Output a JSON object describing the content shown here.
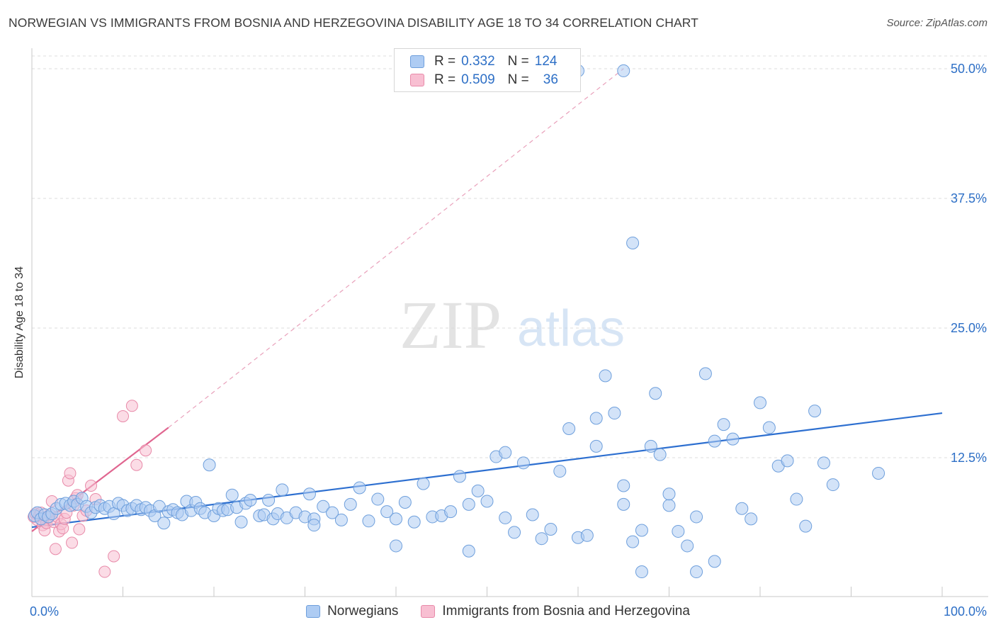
{
  "title": "NORWEGIAN VS IMMIGRANTS FROM BOSNIA AND HERZEGOVINA DISABILITY AGE 18 TO 34 CORRELATION CHART",
  "source": "Source: ZipAtlas.com",
  "watermark": {
    "zip": "ZIP",
    "atlas": "atlas"
  },
  "colors": {
    "blue_fill": "#aeccf3",
    "blue_stroke": "#6e9fdc",
    "blue_line": "#2d6fd0",
    "pink_fill": "#f8bfd2",
    "pink_stroke": "#e88aa9",
    "pink_line": "#e06690",
    "value_text": "#2d6fc6",
    "grid": "#dcdcdc"
  },
  "legend": {
    "rows": [
      {
        "r_label": "R =",
        "r_value": "0.332",
        "n_label": "N =",
        "n_value": "124"
      },
      {
        "r_label": "R =",
        "r_value": "0.509",
        "n_label": "N =",
        "n_value": "36"
      }
    ]
  },
  "bottom_legend": [
    "Norwegians",
    "Immigrants from Bosnia and Herzegovina"
  ],
  "chart_data": {
    "type": "scatter",
    "title": "NORWEGIAN VS IMMIGRANTS FROM BOSNIA AND HERZEGOVINA DISABILITY AGE 18 TO 34 CORRELATION CHART",
    "xlabel": "",
    "ylabel": "Disability Age 18 to 34",
    "xlim": [
      0,
      100
    ],
    "ylim": [
      0,
      52
    ],
    "x_tick_labels": [
      "0.0%",
      "100.0%"
    ],
    "y_ticks": [
      12.5,
      25.0,
      37.5,
      50.0
    ],
    "y_tick_labels": [
      "12.5%",
      "25.0%",
      "37.5%",
      "50.0%"
    ],
    "grid": true,
    "legend_placement": "top-center",
    "series": [
      {
        "name": "Norwegians",
        "r": 0.332,
        "n": 124,
        "trend": {
          "x": [
            0,
            100
          ],
          "y": [
            5.8,
            16.8
          ]
        },
        "points": [
          [
            0.3,
            6.9
          ],
          [
            0.6,
            7.2
          ],
          [
            1.0,
            6.6
          ],
          [
            1.4,
            7.0
          ],
          [
            1.8,
            6.8
          ],
          [
            2.2,
            7.1
          ],
          [
            2.7,
            7.6
          ],
          [
            3.2,
            8.0
          ],
          [
            3.7,
            8.1
          ],
          [
            4.2,
            7.9
          ],
          [
            4.6,
            8.3
          ],
          [
            5.0,
            8.0
          ],
          [
            5.5,
            8.6
          ],
          [
            6.0,
            7.8
          ],
          [
            6.5,
            7.2
          ],
          [
            7.0,
            7.7
          ],
          [
            7.5,
            7.9
          ],
          [
            8.0,
            7.6
          ],
          [
            8.5,
            7.8
          ],
          [
            9.0,
            7.1
          ],
          [
            9.5,
            8.1
          ],
          [
            10.0,
            7.9
          ],
          [
            10.5,
            7.4
          ],
          [
            11.0,
            7.6
          ],
          [
            11.5,
            7.9
          ],
          [
            12.0,
            7.5
          ],
          [
            12.5,
            7.7
          ],
          [
            13.0,
            7.4
          ],
          [
            13.5,
            6.9
          ],
          [
            14.0,
            7.8
          ],
          [
            14.5,
            6.2
          ],
          [
            15.0,
            7.3
          ],
          [
            15.5,
            7.5
          ],
          [
            16.0,
            7.2
          ],
          [
            16.5,
            7.0
          ],
          [
            17.0,
            8.3
          ],
          [
            17.5,
            7.4
          ],
          [
            18.0,
            8.2
          ],
          [
            18.5,
            7.6
          ],
          [
            19.0,
            7.2
          ],
          [
            19.5,
            11.8
          ],
          [
            20.0,
            6.9
          ],
          [
            20.5,
            7.6
          ],
          [
            21.0,
            7.4
          ],
          [
            21.5,
            7.5
          ],
          [
            22.0,
            8.9
          ],
          [
            22.5,
            7.7
          ],
          [
            23.0,
            6.3
          ],
          [
            23.5,
            8.1
          ],
          [
            24.0,
            8.4
          ],
          [
            25.0,
            6.9
          ],
          [
            25.5,
            7.0
          ],
          [
            26.0,
            8.4
          ],
          [
            26.5,
            6.6
          ],
          [
            27.0,
            7.1
          ],
          [
            27.5,
            9.4
          ],
          [
            28.0,
            6.7
          ],
          [
            29.0,
            7.2
          ],
          [
            30.0,
            6.8
          ],
          [
            30.5,
            9.0
          ],
          [
            31.0,
            6.6
          ],
          [
            32.0,
            7.8
          ],
          [
            33.0,
            7.2
          ],
          [
            34.0,
            6.5
          ],
          [
            35.0,
            8.0
          ],
          [
            36.0,
            9.6
          ],
          [
            37.0,
            6.4
          ],
          [
            38.0,
            8.5
          ],
          [
            39.0,
            7.3
          ],
          [
            40.0,
            6.6
          ],
          [
            41.0,
            8.2
          ],
          [
            42.0,
            6.3
          ],
          [
            43.0,
            10.0
          ],
          [
            44.0,
            6.8
          ],
          [
            45.0,
            6.9
          ],
          [
            46.0,
            7.3
          ],
          [
            47.0,
            10.7
          ],
          [
            48.0,
            8.0
          ],
          [
            49.0,
            9.3
          ],
          [
            50.0,
            8.3
          ],
          [
            51.0,
            12.6
          ],
          [
            52.0,
            6.7
          ],
          [
            53.0,
            5.3
          ],
          [
            54.0,
            12.0
          ],
          [
            55.0,
            7.0
          ],
          [
            56.0,
            4.7
          ],
          [
            57.0,
            5.6
          ],
          [
            58.0,
            11.2
          ],
          [
            59.0,
            15.3
          ],
          [
            60.0,
            4.8
          ],
          [
            61.0,
            5.0
          ],
          [
            62.0,
            13.6
          ],
          [
            63.0,
            20.4
          ],
          [
            64.0,
            16.8
          ],
          [
            65.0,
            9.8
          ],
          [
            66.0,
            4.4
          ],
          [
            67.0,
            5.5
          ],
          [
            68.0,
            13.6
          ],
          [
            68.5,
            18.7
          ],
          [
            69.0,
            12.8
          ],
          [
            70.0,
            7.9
          ],
          [
            71.0,
            5.4
          ],
          [
            72.0,
            4.0
          ],
          [
            73.0,
            6.8
          ],
          [
            74.0,
            20.6
          ],
          [
            75.0,
            14.1
          ],
          [
            76.0,
            15.7
          ],
          [
            77.0,
            14.3
          ],
          [
            78.0,
            7.6
          ],
          [
            79.0,
            6.6
          ],
          [
            80.0,
            17.8
          ],
          [
            81.0,
            15.4
          ],
          [
            82.0,
            11.7
          ],
          [
            83.0,
            12.2
          ],
          [
            84.0,
            8.5
          ],
          [
            85.0,
            5.9
          ],
          [
            86.0,
            17.0
          ],
          [
            87.0,
            12.0
          ],
          [
            88.0,
            9.9
          ],
          [
            60.0,
            49.8
          ],
          [
            62.0,
            16.3
          ],
          [
            65.0,
            49.8
          ],
          [
            66.0,
            33.2
          ],
          [
            67.0,
            1.5
          ],
          [
            73.0,
            1.5
          ],
          [
            75.0,
            2.5
          ],
          [
            93.0,
            11.0
          ],
          [
            40.0,
            4.0
          ],
          [
            31.0,
            6.0
          ],
          [
            52.0,
            13.0
          ],
          [
            48.0,
            3.5
          ],
          [
            65.0,
            8.0
          ],
          [
            70.0,
            9.0
          ]
        ]
      },
      {
        "name": "Immigrants from Bosnia and Herzegovina",
        "r": 0.509,
        "n": 36,
        "trend": {
          "x": [
            0,
            15
          ],
          "y": [
            5.4,
            15.4
          ]
        },
        "trend_extended": {
          "x": [
            15,
            65
          ],
          "y": [
            15.4,
            50.0
          ]
        },
        "points": [
          [
            0.2,
            6.8
          ],
          [
            0.4,
            7.1
          ],
          [
            0.6,
            6.5
          ],
          [
            0.8,
            6.9
          ],
          [
            1.0,
            7.2
          ],
          [
            1.2,
            6.0
          ],
          [
            1.4,
            5.5
          ],
          [
            1.6,
            6.2
          ],
          [
            1.8,
            6.7
          ],
          [
            2.0,
            7.0
          ],
          [
            2.2,
            8.3
          ],
          [
            2.4,
            6.3
          ],
          [
            2.6,
            3.7
          ],
          [
            2.8,
            6.8
          ],
          [
            3.0,
            5.4
          ],
          [
            3.2,
            6.1
          ],
          [
            3.4,
            5.7
          ],
          [
            3.6,
            6.6
          ],
          [
            3.8,
            7.2
          ],
          [
            4.0,
            10.3
          ],
          [
            4.2,
            11.0
          ],
          [
            4.4,
            4.3
          ],
          [
            4.6,
            7.9
          ],
          [
            4.8,
            8.6
          ],
          [
            5.0,
            8.9
          ],
          [
            5.2,
            5.6
          ],
          [
            5.6,
            6.9
          ],
          [
            6.0,
            7.4
          ],
          [
            6.5,
            9.8
          ],
          [
            7.0,
            8.5
          ],
          [
            8.0,
            1.5
          ],
          [
            9.0,
            3.0
          ],
          [
            10.0,
            16.5
          ],
          [
            11.0,
            17.5
          ],
          [
            12.5,
            13.2
          ],
          [
            11.5,
            11.8
          ]
        ]
      }
    ]
  }
}
